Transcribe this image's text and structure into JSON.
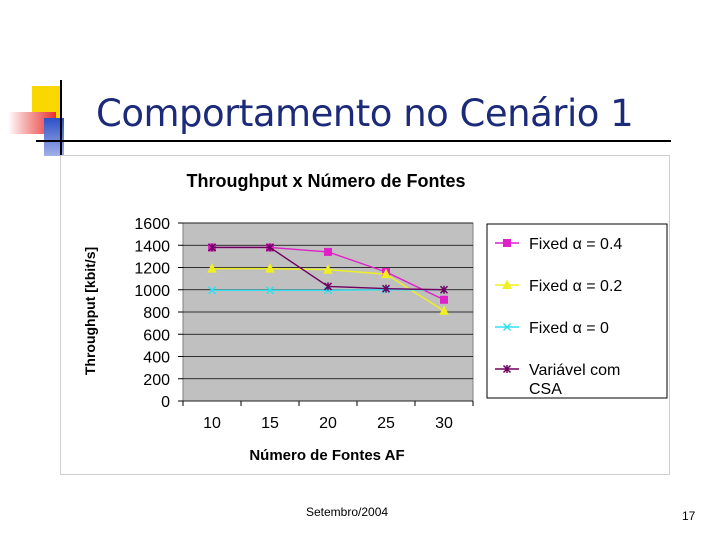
{
  "slide": {
    "title": "Comportamento no Cenário 1",
    "footer": "Setembro/2004",
    "page_number": "17"
  },
  "colors": {
    "title": "#1c2a7a",
    "plot_bg": "#c0c0c0",
    "series": [
      "#e020c8",
      "#f0f020",
      "#30e0f0",
      "#700060"
    ]
  },
  "chart_data": {
    "type": "line",
    "title": "Throughput x Número de Fontes",
    "xlabel": "Número de Fontes AF",
    "ylabel": "Throughput [kbit/s]",
    "categories": [
      "10",
      "15",
      "20",
      "25",
      "30"
    ],
    "ylim": [
      0,
      1600
    ],
    "yticks": [
      0,
      200,
      400,
      600,
      800,
      1000,
      1200,
      1400,
      1600
    ],
    "grid": true,
    "legend": "right",
    "series": [
      {
        "name": "Fixed α = 0.4",
        "marker": "square",
        "values": [
          1380,
          1380,
          1340,
          1160,
          910
        ]
      },
      {
        "name": "Fixed α = 0.2",
        "marker": "triangle",
        "values": [
          1190,
          1190,
          1180,
          1140,
          810
        ]
      },
      {
        "name": "Fixed α = 0",
        "marker": "x",
        "values": [
          995,
          995,
          995,
          1000,
          1000
        ]
      },
      {
        "name": "Variável com CSA",
        "marker": "star",
        "values": [
          1380,
          1380,
          1030,
          1010,
          1000
        ]
      }
    ]
  }
}
